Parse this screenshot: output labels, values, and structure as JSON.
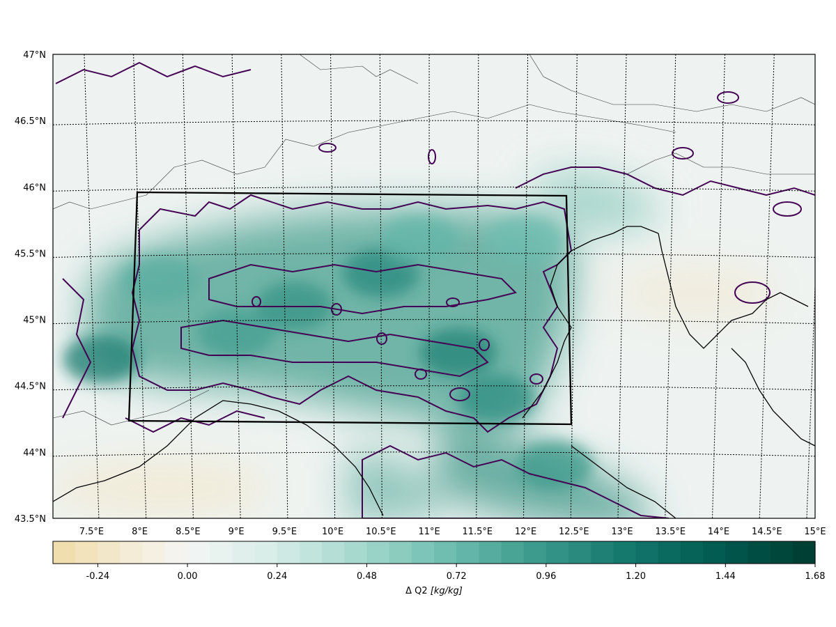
{
  "chart_data": {
    "type": "heatmap",
    "title": "",
    "map": {
      "lon_range": [
        7.1,
        15.0
      ],
      "lat_range": [
        43.5,
        47.0
      ],
      "lon_ticks": [
        "7.5°E",
        "8°E",
        "8.5°E",
        "9°E",
        "9.5°E",
        "10°E",
        "10.5°E",
        "11°E",
        "11.5°E",
        "12°E",
        "12.5°E",
        "13°E",
        "13.5°E",
        "14°E",
        "14.5°E",
        "15°E"
      ],
      "lat_ticks": [
        "43.5°N",
        "44°N",
        "44.5°N",
        "45°N",
        "45.5°N",
        "46°N",
        "46.5°N",
        "47°N"
      ],
      "gridlines": "dotted",
      "box": {
        "lon": [
          7.8,
          12.5
        ],
        "lat": [
          44.25,
          45.95
        ]
      },
      "contour_color": "#440154",
      "coastline_color": "#000000"
    },
    "colorbar": {
      "label": "Δ Q2 [kg/kg]",
      "label_prefix": "Δ Q2 ",
      "label_units": "[kg/kg]",
      "vmin": -0.36,
      "vmax": 1.68,
      "levels": 34,
      "ticks": [
        "-0.24",
        "0.00",
        "0.24",
        "0.48",
        "0.72",
        "0.96",
        "1.20",
        "1.44",
        "1.68"
      ],
      "tick_values": [
        -0.24,
        0.0,
        0.24,
        0.48,
        0.72,
        0.96,
        1.2,
        1.44,
        1.68
      ],
      "colormap": "BrBG",
      "low_color": "#f2dfa8",
      "zero_color": "#f4f5f3",
      "high_color": "#003c30"
    },
    "hotspots": [
      {
        "lon": 9.6,
        "lat": 45.1,
        "value": 0.98
      },
      {
        "lon": 10.5,
        "lat": 45.35,
        "value": 1.05
      },
      {
        "lon": 11.3,
        "lat": 44.75,
        "value": 1.1
      },
      {
        "lon": 11.7,
        "lat": 44.4,
        "value": 1.02
      },
      {
        "lon": 7.6,
        "lat": 44.7,
        "value": 1.15
      },
      {
        "lon": 9.0,
        "lat": 44.9,
        "value": 0.9
      },
      {
        "lon": 12.3,
        "lat": 43.9,
        "value": 0.95
      },
      {
        "lon": 10.9,
        "lat": 45.6,
        "value": 0.75
      },
      {
        "lon": 8.2,
        "lat": 45.3,
        "value": 0.8
      },
      {
        "lon": 12.0,
        "lat": 45.6,
        "value": 0.7
      }
    ]
  }
}
